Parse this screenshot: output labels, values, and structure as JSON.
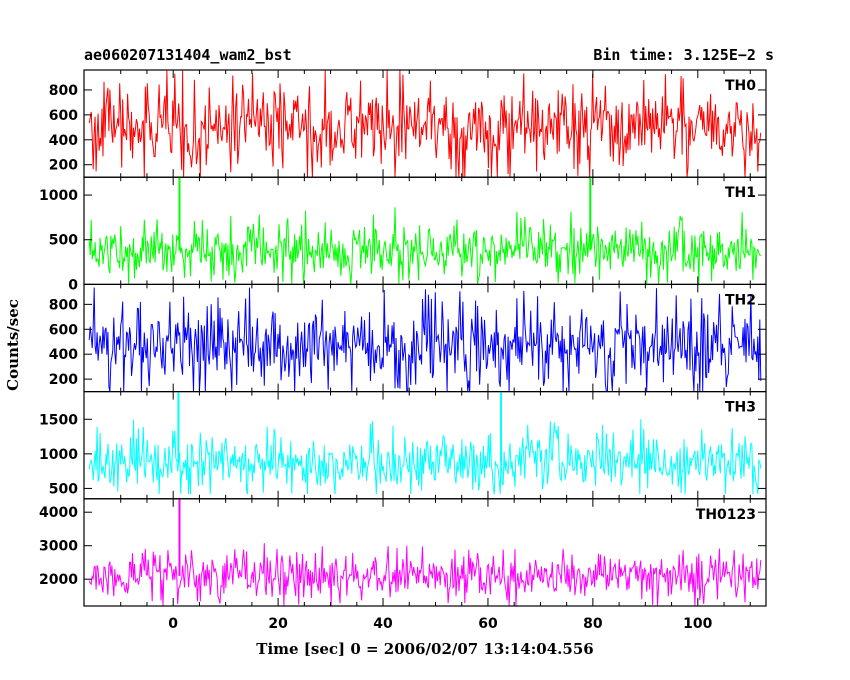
{
  "header": {
    "title": "ae060207131404_wam2_bst",
    "bin_time": "Bin time: 3.125E−2 s"
  },
  "chart_data": {
    "type": "line",
    "title": "ae060207131404_wam2_bst",
    "xlabel": "Time [sec] 0 = 2006/02/07 13:14:04.556",
    "ylabel": "Counts/sec",
    "xlim": [
      -17,
      113
    ],
    "x_ticks": [
      0,
      20,
      40,
      60,
      80,
      100
    ],
    "x_range_data": [
      -16,
      112
    ],
    "bin_time": 0.03125,
    "panels": [
      {
        "name": "TH0",
        "color": "#ff0000",
        "ylim": [
          100,
          960
        ],
        "y_ticks": [
          200,
          400,
          600,
          800
        ],
        "mean": 500,
        "low_typ": 150,
        "high_typ": 850,
        "low_min": 100,
        "high_max": 960,
        "spikes": []
      },
      {
        "name": "TH1",
        "color": "#00ff00",
        "ylim": [
          0,
          1200
        ],
        "y_ticks": [
          0,
          500,
          1000
        ],
        "mean": 380,
        "low_typ": 100,
        "high_typ": 750,
        "low_min": 0,
        "high_max": 1000,
        "spikes": [
          {
            "x": 1.2,
            "y": 1200
          },
          {
            "x": 79.5,
            "y": 1200
          }
        ]
      },
      {
        "name": "TH2",
        "color": "#0000ff",
        "ylim": [
          100,
          960
        ],
        "y_ticks": [
          200,
          400,
          600,
          800
        ],
        "mean": 480,
        "low_typ": 170,
        "high_typ": 850,
        "low_min": 100,
        "high_max": 960,
        "spikes": []
      },
      {
        "name": "TH3",
        "color": "#00ffff",
        "ylim": [
          350,
          1900
        ],
        "y_ticks": [
          500,
          1000,
          1500
        ],
        "mean": 880,
        "low_typ": 470,
        "high_typ": 1400,
        "low_min": 420,
        "high_max": 1700,
        "spikes": [
          {
            "x": 1.0,
            "y": 1900
          },
          {
            "x": 62.5,
            "y": 1900
          }
        ]
      },
      {
        "name": "TH0123",
        "color": "#ff00ff",
        "ylim": [
          1200,
          4400
        ],
        "y_ticks": [
          2000,
          3000,
          4000
        ],
        "mean": 2100,
        "low_typ": 1450,
        "high_typ": 2900,
        "low_min": 1200,
        "high_max": 3500,
        "spikes": [
          {
            "x": 1.2,
            "y": 4400
          }
        ]
      }
    ]
  }
}
